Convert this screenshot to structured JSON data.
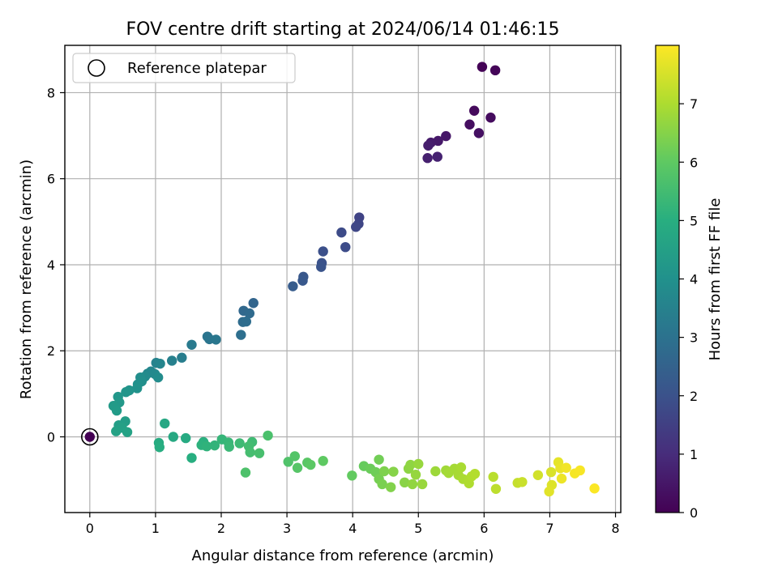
{
  "chart_data": {
    "type": "scatter",
    "title": "FOV centre drift starting at 2024/06/14 01:46:15",
    "xlabel": "Angular distance from reference (arcmin)",
    "ylabel": "Rotation from reference (arcmin)",
    "xlim": [
      -0.38,
      8.08
    ],
    "ylim": [
      -1.76,
      9.1
    ],
    "xticks": [
      0,
      1,
      2,
      3,
      4,
      5,
      6,
      7,
      8
    ],
    "yticks": [
      0,
      2,
      4,
      6,
      8
    ],
    "grid": true,
    "legend": {
      "position": "top-left",
      "entries": [
        "Reference platepar"
      ]
    },
    "reference_point": {
      "x": 0,
      "y": 0,
      "label": "Reference platepar"
    },
    "colorbar": {
      "label": "Hours from first FF file",
      "colormap": "viridis",
      "range": [
        0,
        8
      ],
      "ticks": [
        0,
        1,
        2,
        3,
        4,
        5,
        6,
        7
      ]
    },
    "points": [
      {
        "x": 0.0,
        "y": 0.0,
        "c": 0.0
      },
      {
        "x": 5.97,
        "y": 8.6,
        "c": 0.05
      },
      {
        "x": 6.17,
        "y": 8.52,
        "c": 0.1
      },
      {
        "x": 5.85,
        "y": 7.58,
        "c": 0.2
      },
      {
        "x": 6.1,
        "y": 7.42,
        "c": 0.25
      },
      {
        "x": 5.78,
        "y": 7.26,
        "c": 0.3
      },
      {
        "x": 5.92,
        "y": 7.06,
        "c": 0.35
      },
      {
        "x": 5.42,
        "y": 6.99,
        "c": 0.5
      },
      {
        "x": 5.3,
        "y": 6.88,
        "c": 0.55
      },
      {
        "x": 5.19,
        "y": 6.84,
        "c": 0.6
      },
      {
        "x": 5.15,
        "y": 6.77,
        "c": 0.65
      },
      {
        "x": 5.14,
        "y": 6.48,
        "c": 0.7
      },
      {
        "x": 5.29,
        "y": 6.51,
        "c": 0.75
      },
      {
        "x": 4.1,
        "y": 5.1,
        "c": 1.6
      },
      {
        "x": 4.09,
        "y": 4.95,
        "c": 1.65
      },
      {
        "x": 4.05,
        "y": 4.88,
        "c": 1.7
      },
      {
        "x": 3.83,
        "y": 4.75,
        "c": 1.8
      },
      {
        "x": 3.89,
        "y": 4.41,
        "c": 1.85
      },
      {
        "x": 3.55,
        "y": 4.31,
        "c": 1.95
      },
      {
        "x": 3.53,
        "y": 4.04,
        "c": 2.0
      },
      {
        "x": 3.52,
        "y": 3.95,
        "c": 2.05
      },
      {
        "x": 3.25,
        "y": 3.72,
        "c": 2.15
      },
      {
        "x": 3.24,
        "y": 3.63,
        "c": 2.2
      },
      {
        "x": 3.09,
        "y": 3.5,
        "c": 2.3
      },
      {
        "x": 2.49,
        "y": 3.11,
        "c": 2.6
      },
      {
        "x": 2.34,
        "y": 2.93,
        "c": 2.7
      },
      {
        "x": 2.43,
        "y": 2.87,
        "c": 2.75
      },
      {
        "x": 2.33,
        "y": 2.67,
        "c": 2.8
      },
      {
        "x": 2.38,
        "y": 2.68,
        "c": 2.85
      },
      {
        "x": 2.3,
        "y": 2.37,
        "c": 2.9
      },
      {
        "x": 1.79,
        "y": 2.33,
        "c": 3.05
      },
      {
        "x": 1.82,
        "y": 2.27,
        "c": 3.1
      },
      {
        "x": 1.92,
        "y": 2.26,
        "c": 3.15
      },
      {
        "x": 1.55,
        "y": 2.14,
        "c": 3.25
      },
      {
        "x": 1.4,
        "y": 1.84,
        "c": 3.35
      },
      {
        "x": 1.25,
        "y": 1.77,
        "c": 3.45
      },
      {
        "x": 1.01,
        "y": 1.72,
        "c": 3.55
      },
      {
        "x": 1.07,
        "y": 1.7,
        "c": 3.6
      },
      {
        "x": 0.93,
        "y": 1.52,
        "c": 3.65
      },
      {
        "x": 0.88,
        "y": 1.47,
        "c": 3.7
      },
      {
        "x": 0.99,
        "y": 1.46,
        "c": 3.75
      },
      {
        "x": 0.84,
        "y": 1.4,
        "c": 3.8
      },
      {
        "x": 1.04,
        "y": 1.38,
        "c": 3.85
      },
      {
        "x": 0.77,
        "y": 1.38,
        "c": 3.9
      },
      {
        "x": 0.79,
        "y": 1.29,
        "c": 3.95
      },
      {
        "x": 0.73,
        "y": 1.22,
        "c": 4.0
      },
      {
        "x": 0.72,
        "y": 1.13,
        "c": 4.05
      },
      {
        "x": 0.6,
        "y": 1.08,
        "c": 4.1
      },
      {
        "x": 0.55,
        "y": 1.04,
        "c": 4.15
      },
      {
        "x": 0.43,
        "y": 0.93,
        "c": 4.2
      },
      {
        "x": 0.45,
        "y": 0.8,
        "c": 4.25
      },
      {
        "x": 0.36,
        "y": 0.72,
        "c": 4.3
      },
      {
        "x": 0.41,
        "y": 0.61,
        "c": 4.35
      },
      {
        "x": 0.54,
        "y": 0.36,
        "c": 4.4
      },
      {
        "x": 0.44,
        "y": 0.27,
        "c": 4.45
      },
      {
        "x": 0.49,
        "y": 0.21,
        "c": 4.5
      },
      {
        "x": 0.4,
        "y": 0.13,
        "c": 4.55
      },
      {
        "x": 0.57,
        "y": 0.11,
        "c": 4.6
      },
      {
        "x": 1.14,
        "y": 0.31,
        "c": 4.75
      },
      {
        "x": 1.27,
        "y": 0.0,
        "c": 4.8
      },
      {
        "x": 1.46,
        "y": -0.03,
        "c": 4.85
      },
      {
        "x": 1.05,
        "y": -0.14,
        "c": 4.9
      },
      {
        "x": 1.06,
        "y": -0.24,
        "c": 4.95
      },
      {
        "x": 1.55,
        "y": -0.49,
        "c": 5.0
      },
      {
        "x": 1.73,
        "y": -0.12,
        "c": 5.05
      },
      {
        "x": 1.7,
        "y": -0.19,
        "c": 5.1
      },
      {
        "x": 1.78,
        "y": -0.22,
        "c": 5.15
      },
      {
        "x": 1.9,
        "y": -0.2,
        "c": 5.2
      },
      {
        "x": 2.01,
        "y": -0.06,
        "c": 5.25
      },
      {
        "x": 2.11,
        "y": -0.13,
        "c": 5.3
      },
      {
        "x": 2.12,
        "y": -0.23,
        "c": 5.35
      },
      {
        "x": 2.28,
        "y": -0.15,
        "c": 5.4
      },
      {
        "x": 2.47,
        "y": -0.12,
        "c": 5.45
      },
      {
        "x": 2.42,
        "y": -0.22,
        "c": 5.5
      },
      {
        "x": 2.44,
        "y": -0.36,
        "c": 5.55
      },
      {
        "x": 2.58,
        "y": -0.38,
        "c": 5.6
      },
      {
        "x": 2.71,
        "y": 0.03,
        "c": 5.65
      },
      {
        "x": 2.37,
        "y": -0.83,
        "c": 5.7
      },
      {
        "x": 3.02,
        "y": -0.58,
        "c": 5.75
      },
      {
        "x": 3.12,
        "y": -0.45,
        "c": 5.8
      },
      {
        "x": 3.16,
        "y": -0.72,
        "c": 5.85
      },
      {
        "x": 3.31,
        "y": -0.6,
        "c": 5.9
      },
      {
        "x": 3.36,
        "y": -0.65,
        "c": 5.95
      },
      {
        "x": 3.55,
        "y": -0.56,
        "c": 6.0
      },
      {
        "x": 3.99,
        "y": -0.9,
        "c": 6.05
      },
      {
        "x": 4.17,
        "y": -0.68,
        "c": 6.1
      },
      {
        "x": 4.27,
        "y": -0.74,
        "c": 6.15
      },
      {
        "x": 4.35,
        "y": -0.82,
        "c": 6.2
      },
      {
        "x": 4.4,
        "y": -0.53,
        "c": 6.25
      },
      {
        "x": 4.4,
        "y": -0.98,
        "c": 6.3
      },
      {
        "x": 4.45,
        "y": -1.1,
        "c": 6.35
      },
      {
        "x": 4.48,
        "y": -0.8,
        "c": 6.4
      },
      {
        "x": 4.58,
        "y": -1.17,
        "c": 6.45
      },
      {
        "x": 4.62,
        "y": -0.81,
        "c": 6.5
      },
      {
        "x": 4.79,
        "y": -1.06,
        "c": 6.55
      },
      {
        "x": 4.85,
        "y": -0.74,
        "c": 6.6
      },
      {
        "x": 4.88,
        "y": -0.65,
        "c": 6.62
      },
      {
        "x": 4.91,
        "y": -1.1,
        "c": 6.65
      },
      {
        "x": 4.96,
        "y": -0.88,
        "c": 6.7
      },
      {
        "x": 5.0,
        "y": -0.63,
        "c": 6.72
      },
      {
        "x": 5.06,
        "y": -1.1,
        "c": 6.75
      },
      {
        "x": 5.26,
        "y": -0.8,
        "c": 6.8
      },
      {
        "x": 5.42,
        "y": -0.78,
        "c": 6.85
      },
      {
        "x": 5.46,
        "y": -0.84,
        "c": 6.88
      },
      {
        "x": 5.55,
        "y": -0.74,
        "c": 6.9
      },
      {
        "x": 5.61,
        "y": -0.89,
        "c": 6.92
      },
      {
        "x": 5.65,
        "y": -0.71,
        "c": 6.95
      },
      {
        "x": 5.68,
        "y": -0.98,
        "c": 6.97
      },
      {
        "x": 5.76,
        "y": -1.0,
        "c": 7.0
      },
      {
        "x": 5.77,
        "y": -1.08,
        "c": 7.02
      },
      {
        "x": 5.81,
        "y": -0.92,
        "c": 7.05
      },
      {
        "x": 5.86,
        "y": -0.86,
        "c": 7.08
      },
      {
        "x": 6.14,
        "y": -0.93,
        "c": 7.15
      },
      {
        "x": 6.18,
        "y": -1.21,
        "c": 7.2
      },
      {
        "x": 6.51,
        "y": -1.07,
        "c": 7.3
      },
      {
        "x": 6.58,
        "y": -1.05,
        "c": 7.35
      },
      {
        "x": 6.82,
        "y": -0.89,
        "c": 7.45
      },
      {
        "x": 7.02,
        "y": -0.82,
        "c": 7.55
      },
      {
        "x": 7.03,
        "y": -1.12,
        "c": 7.6
      },
      {
        "x": 6.99,
        "y": -1.27,
        "c": 7.65
      },
      {
        "x": 7.13,
        "y": -0.59,
        "c": 7.7
      },
      {
        "x": 7.16,
        "y": -0.73,
        "c": 7.75
      },
      {
        "x": 7.18,
        "y": -0.97,
        "c": 7.8
      },
      {
        "x": 7.25,
        "y": -0.72,
        "c": 7.85
      },
      {
        "x": 7.38,
        "y": -0.85,
        "c": 7.9
      },
      {
        "x": 7.46,
        "y": -0.78,
        "c": 7.93
      },
      {
        "x": 7.68,
        "y": -1.2,
        "c": 7.98
      }
    ]
  }
}
